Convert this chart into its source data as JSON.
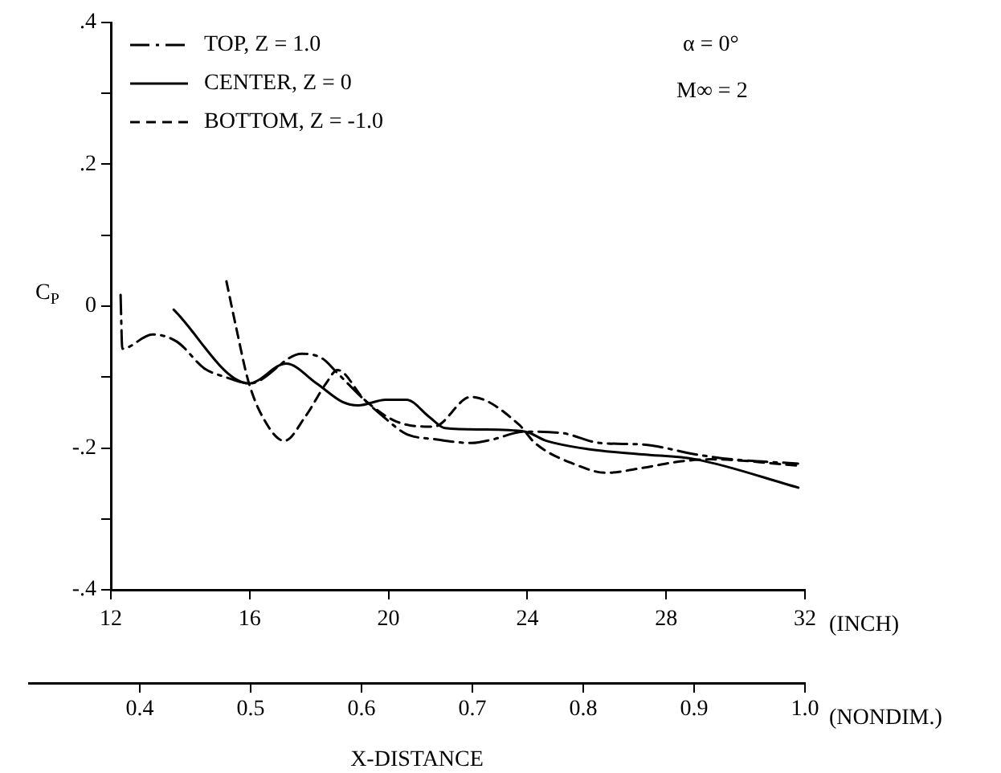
{
  "chart_data": {
    "type": "line",
    "xlabel": "X-DISTANCE",
    "ylabel": "C$_{P}$",
    "annotations": [
      "(INCH)",
      "(NONDIM.)",
      "α = 0°",
      "M∞ = 2"
    ],
    "xlim": [
      12,
      32
    ],
    "xticks": [
      12,
      16,
      20,
      24,
      28,
      32
    ],
    "x2lim": [
      0.3,
      1.0
    ],
    "x2ticks": [
      0.4,
      0.5,
      0.6,
      0.7,
      0.8,
      0.9,
      {
        "value": 1.0,
        "label": "1.0"
      }
    ],
    "ylim": [
      -0.4,
      0.4
    ],
    "yticks": [
      {
        "value": -0.4,
        "label": "-.4"
      },
      {
        "value": -0.3,
        "label": null
      },
      {
        "value": -0.2,
        "label": "-.2"
      },
      {
        "value": -0.1,
        "label": null
      },
      0,
      {
        "value": 0.1,
        "label": null
      },
      {
        "value": 0.2,
        "label": ".2"
      },
      {
        "value": 0.3,
        "label": null
      },
      {
        "value": 0.4,
        "label": ".4"
      }
    ],
    "legend": "top left",
    "series": [
      {
        "name": "TOP, Z = 1.0",
        "color": "#000000",
        "line_style": "dashdot",
        "x": [
          12.28,
          12.33,
          13.2,
          13.9,
          14.7,
          15.3,
          16.0,
          17.5,
          18.1,
          18.5,
          19.3,
          19.9,
          20.5,
          21.4,
          22.4,
          23.0,
          23.9,
          25.0,
          26.1,
          27.3,
          28.85,
          29.9,
          31.8
        ],
        "values": [
          0.016,
          -0.06,
          -0.04,
          -0.05,
          -0.088,
          -0.1,
          -0.109,
          -0.067,
          -0.074,
          -0.093,
          -0.132,
          -0.158,
          -0.18,
          -0.188,
          -0.193,
          -0.188,
          -0.177,
          -0.179,
          -0.193,
          -0.195,
          -0.209,
          -0.216,
          -0.222
        ]
      },
      {
        "name": "CENTER, Z = 0",
        "color": "#000000",
        "line_style": "solid",
        "x": [
          13.81,
          15.98,
          17.05,
          17.93,
          18.67,
          19.13,
          19.92,
          20.52,
          21.17,
          21.63,
          22.69,
          23.94,
          24.55,
          25.8,
          27.32,
          28.85,
          31.81
        ],
        "values": [
          -0.005,
          -0.109,
          -0.081,
          -0.109,
          -0.135,
          -0.14,
          -0.132,
          -0.132,
          -0.156,
          -0.172,
          -0.174,
          -0.177,
          -0.19,
          -0.202,
          -0.209,
          -0.216,
          -0.256
        ]
      },
      {
        "name": "BOTTOM, Z = -1.0",
        "color": "#000000",
        "line_style": "dashed",
        "x": [
          15.33,
          15.61,
          15.98,
          16.54,
          17.0,
          17.6,
          18.2,
          18.53,
          19.31,
          20.24,
          21.3,
          22.37,
          23.76,
          24.22,
          25.47,
          26.26,
          27.32,
          28.39,
          29.31,
          31.81
        ],
        "values": [
          0.035,
          -0.03,
          -0.109,
          -0.17,
          -0.19,
          -0.156,
          -0.109,
          -0.09,
          -0.132,
          -0.163,
          -0.17,
          -0.128,
          -0.167,
          -0.193,
          -0.225,
          -0.235,
          -0.228,
          -0.219,
          -0.216,
          -0.225
        ]
      }
    ]
  }
}
